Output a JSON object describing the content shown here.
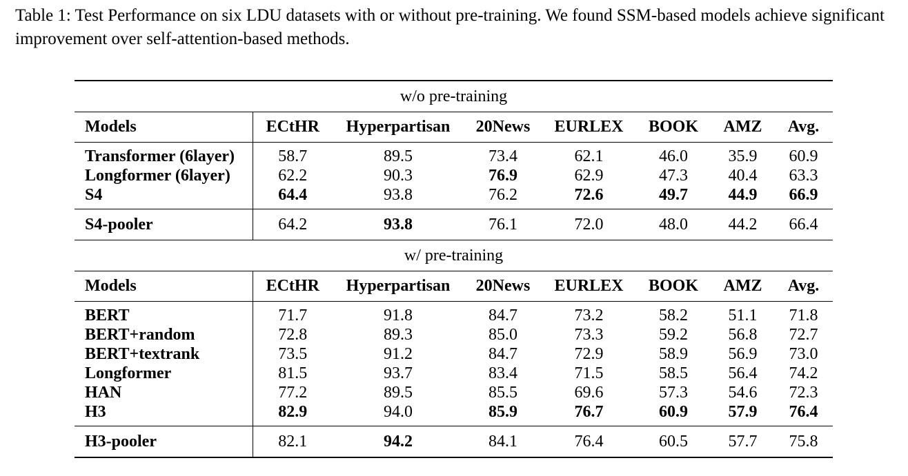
{
  "caption": "Table 1: Test Performance on six LDU datasets with or without pre-training. We found SSM-based models achieve significant improvement over self-attention-based methods.",
  "columns": [
    "Models",
    "ECtHR",
    "Hyperpartisan",
    "20News",
    "EURLEX",
    "BOOK",
    "AMZ",
    "Avg."
  ],
  "section1": {
    "title": "w/o pre-training",
    "rows": [
      {
        "model": "Transformer (6layer)",
        "values": [
          "58.7",
          "89.5",
          "73.4",
          "62.1",
          "46.0",
          "35.9",
          "60.9"
        ],
        "bold": []
      },
      {
        "model": "Longformer (6layer)",
        "values": [
          "62.2",
          "90.3",
          "76.9",
          "62.9",
          "47.3",
          "40.4",
          "63.3"
        ],
        "bold": [
          2
        ]
      },
      {
        "model": "S4",
        "values": [
          "64.4",
          "93.8",
          "76.2",
          "72.6",
          "49.7",
          "44.9",
          "66.9"
        ],
        "bold": [
          0,
          3,
          4,
          5,
          6
        ]
      }
    ],
    "pooler": {
      "model": "S4-pooler",
      "values": [
        "64.2",
        "93.8",
        "76.1",
        "72.0",
        "48.0",
        "44.2",
        "66.4"
      ],
      "bold": [
        1
      ]
    }
  },
  "section2": {
    "title": "w/ pre-training",
    "rows": [
      {
        "model": "BERT",
        "values": [
          "71.7",
          "91.8",
          "84.7",
          "73.2",
          "58.2",
          "51.1",
          "71.8"
        ],
        "bold": []
      },
      {
        "model": "BERT+random",
        "values": [
          "72.8",
          "89.3",
          "85.0",
          "73.3",
          "59.2",
          "56.8",
          "72.7"
        ],
        "bold": []
      },
      {
        "model": "BERT+textrank",
        "values": [
          "73.5",
          "91.2",
          "84.7",
          "72.9",
          "58.9",
          "56.9",
          "73.0"
        ],
        "bold": []
      },
      {
        "model": "Longformer",
        "values": [
          "81.5",
          "93.7",
          "83.4",
          "71.5",
          "58.5",
          "56.4",
          "74.2"
        ],
        "bold": []
      },
      {
        "model": "HAN",
        "values": [
          "77.2",
          "89.5",
          "85.5",
          "69.6",
          "57.3",
          "54.6",
          "72.3"
        ],
        "bold": []
      },
      {
        "model": "H3",
        "values": [
          "82.9",
          "94.0",
          "85.9",
          "76.7",
          "60.9",
          "57.9",
          "76.4"
        ],
        "bold": [
          0,
          2,
          3,
          4,
          5,
          6
        ]
      }
    ],
    "pooler": {
      "model": "H3-pooler",
      "values": [
        "82.1",
        "94.2",
        "84.1",
        "76.4",
        "60.5",
        "57.7",
        "75.8"
      ],
      "bold": [
        1
      ]
    }
  }
}
